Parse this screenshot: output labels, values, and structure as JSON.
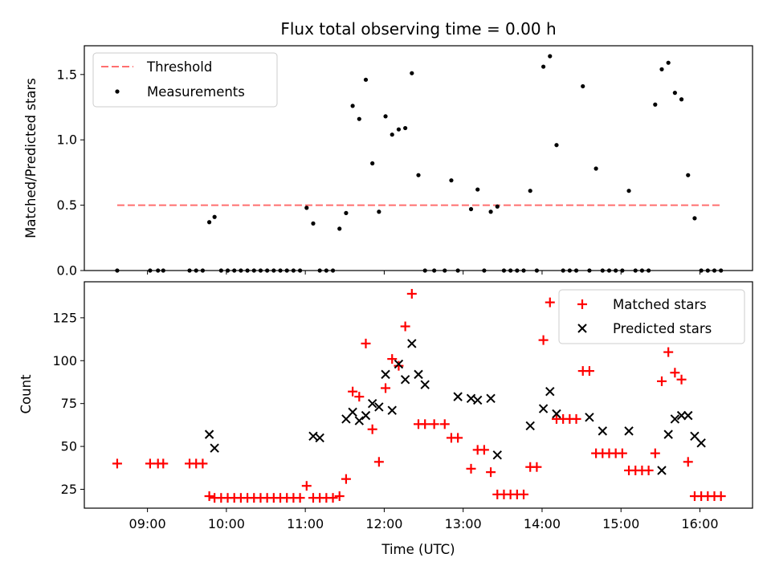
{
  "chart_data": [
    {
      "type": "scatter",
      "title": "Flux total observing time = 0.00 h",
      "xlabel": "",
      "ylabel": "Matched/Predicted stars",
      "ylim": [
        0,
        1.72
      ],
      "yticks": [
        0.0,
        0.5,
        1.0,
        1.5
      ],
      "ytick_labels": [
        "0.0",
        "0.5",
        "1.0",
        "1.5"
      ],
      "legend_position": "top-left",
      "threshold": {
        "name": "Threshold",
        "value": 0.5,
        "x_start": "08:37",
        "x_end": "16:17",
        "color": "#ff6f6f",
        "style": "dashed"
      },
      "series": [
        {
          "name": "Measurements",
          "marker": "dot",
          "color": "#000000",
          "x": [
            "08:37",
            "09:02",
            "09:08",
            "09:12",
            "09:32",
            "09:37",
            "09:42",
            "09:47",
            "09:51",
            "09:56",
            "10:01",
            "10:06",
            "10:11",
            "10:16",
            "10:21",
            "10:26",
            "10:31",
            "10:36",
            "10:41",
            "10:46",
            "10:51",
            "10:56",
            "11:01",
            "11:06",
            "11:11",
            "11:16",
            "11:21",
            "11:26",
            "11:31",
            "11:36",
            "11:41",
            "11:46",
            "11:51",
            "11:56",
            "12:01",
            "12:06",
            "12:11",
            "12:16",
            "12:21",
            "12:26",
            "12:31",
            "12:38",
            "12:46",
            "12:51",
            "12:56",
            "13:06",
            "13:11",
            "13:16",
            "13:21",
            "13:26",
            "13:31",
            "13:36",
            "13:41",
            "13:46",
            "13:51",
            "13:56",
            "14:01",
            "14:06",
            "14:11",
            "14:16",
            "14:21",
            "14:26",
            "14:31",
            "14:36",
            "14:41",
            "14:46",
            "14:51",
            "14:56",
            "15:01",
            "15:06",
            "15:11",
            "15:16",
            "15:21",
            "15:26",
            "15:31",
            "15:36",
            "15:41",
            "15:46",
            "15:51",
            "15:56",
            "16:01",
            "16:06",
            "16:11",
            "16:16"
          ],
          "y": [
            0,
            0,
            0,
            0,
            0,
            0,
            0,
            0.37,
            0.41,
            0,
            0,
            0,
            0,
            0,
            0,
            0,
            0,
            0,
            0,
            0,
            0,
            0,
            0.48,
            0.36,
            0,
            0,
            0,
            0.32,
            0.44,
            1.26,
            1.16,
            1.46,
            0.82,
            0.45,
            1.18,
            1.04,
            1.08,
            1.09,
            1.51,
            0.73,
            0,
            0,
            0,
            0.69,
            0,
            0.47,
            0.62,
            0,
            0.45,
            0.49,
            0,
            0,
            0,
            0,
            0.61,
            0,
            1.56,
            1.64,
            0.96,
            0,
            0,
            0,
            1.41,
            0,
            0.78,
            0,
            0,
            0,
            0,
            0.61,
            0,
            0,
            0,
            1.27,
            1.54,
            1.59,
            1.36,
            1.31,
            0.73,
            0.4,
            0,
            0,
            0,
            0
          ]
        }
      ]
    },
    {
      "type": "scatter",
      "title": "",
      "xlabel": "Time (UTC)",
      "ylabel": "Count",
      "ylim": [
        14,
        146
      ],
      "yticks": [
        25,
        50,
        75,
        100,
        125
      ],
      "ytick_labels": [
        "25",
        "50",
        "75",
        "100",
        "125"
      ],
      "xlim": [
        "08:12",
        "16:40"
      ],
      "xticks": [
        "09:00",
        "10:00",
        "11:00",
        "12:00",
        "13:00",
        "14:00",
        "15:00",
        "16:00"
      ],
      "xtick_labels": [
        "09:00",
        "10:00",
        "11:00",
        "12:00",
        "13:00",
        "14:00",
        "15:00",
        "16:00"
      ],
      "legend_position": "top-right",
      "series": [
        {
          "name": "Matched stars",
          "marker": "plus",
          "color": "#ff0000",
          "x": [
            "08:37",
            "09:02",
            "09:08",
            "09:12",
            "09:32",
            "09:37",
            "09:42",
            "09:47",
            "09:51",
            "09:56",
            "10:01",
            "10:06",
            "10:11",
            "10:16",
            "10:21",
            "10:26",
            "10:31",
            "10:36",
            "10:41",
            "10:46",
            "10:51",
            "10:56",
            "11:01",
            "11:06",
            "11:11",
            "11:16",
            "11:21",
            "11:26",
            "11:31",
            "11:36",
            "11:41",
            "11:46",
            "11:51",
            "11:56",
            "12:01",
            "12:06",
            "12:11",
            "12:16",
            "12:21",
            "12:26",
            "12:31",
            "12:38",
            "12:46",
            "12:51",
            "12:56",
            "13:06",
            "13:11",
            "13:16",
            "13:21",
            "13:26",
            "13:31",
            "13:36",
            "13:41",
            "13:46",
            "13:51",
            "13:56",
            "14:01",
            "14:06",
            "14:11",
            "14:16",
            "14:21",
            "14:26",
            "14:31",
            "14:36",
            "14:41",
            "14:46",
            "14:51",
            "14:56",
            "15:01",
            "15:06",
            "15:11",
            "15:16",
            "15:21",
            "15:26",
            "15:31",
            "15:36",
            "15:41",
            "15:46",
            "15:51",
            "15:56",
            "16:01",
            "16:06",
            "16:11",
            "16:16"
          ],
          "y": [
            40,
            40,
            40,
            40,
            40,
            40,
            40,
            21,
            20,
            20,
            20,
            20,
            20,
            20,
            20,
            20,
            20,
            20,
            20,
            20,
            20,
            20,
            27,
            20,
            20,
            20,
            20,
            21,
            31,
            82,
            79,
            110,
            60,
            41,
            84,
            101,
            97,
            120,
            139,
            63,
            63,
            63,
            63,
            55,
            55,
            37,
            48,
            48,
            35,
            22,
            22,
            22,
            22,
            22,
            38,
            38,
            112,
            134,
            66,
            66,
            66,
            66,
            94,
            94,
            46,
            46,
            46,
            46,
            46,
            36,
            36,
            36,
            36,
            46,
            88,
            105,
            93,
            89,
            41,
            21,
            21,
            21,
            21,
            21
          ]
        },
        {
          "name": "Predicted stars",
          "marker": "x",
          "color": "#000000",
          "x": [
            "09:47",
            "09:51",
            "11:06",
            "11:11",
            "11:31",
            "11:36",
            "11:41",
            "11:46",
            "11:51",
            "11:56",
            "12:01",
            "12:06",
            "12:11",
            "12:16",
            "12:21",
            "12:26",
            "12:31",
            "12:56",
            "13:06",
            "13:11",
            "13:21",
            "13:26",
            "13:51",
            "14:01",
            "14:06",
            "14:11",
            "14:36",
            "14:46",
            "15:06",
            "15:31",
            "15:36",
            "15:41",
            "15:46",
            "15:51",
            "15:56",
            "16:01"
          ],
          "y": [
            57,
            49,
            56,
            55,
            66,
            70,
            65,
            68,
            75,
            73,
            92,
            71,
            98,
            89,
            110,
            92,
            86,
            79,
            78,
            77,
            78,
            45,
            62,
            72,
            82,
            69,
            67,
            59,
            59,
            36,
            57,
            66,
            68,
            68,
            56,
            52
          ]
        }
      ]
    }
  ]
}
